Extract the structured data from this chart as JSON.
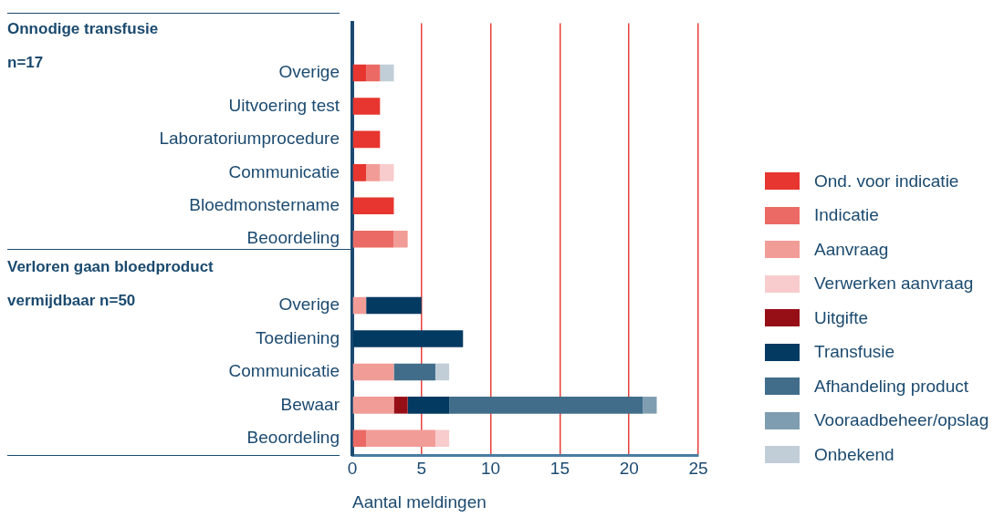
{
  "chart_data": {
    "type": "bar",
    "orientation": "horizontal",
    "stacked": true,
    "categories": [
      null,
      "Overige",
      "Uitvoering test",
      "Laboratoriumprocedure",
      "Communicatie",
      "Bloedmonstername",
      "Beoordeling",
      null,
      "Overige",
      "Toediening",
      "Communicatie",
      "Bewaar",
      "Beoordeling"
    ],
    "series": [
      {
        "name": "Ond. voor indicatie",
        "color": "#e6362f",
        "values": [
          null,
          1,
          2,
          2,
          1,
          3,
          null,
          null,
          null,
          null,
          null,
          null,
          null
        ]
      },
      {
        "name": "Indicatie",
        "color": "#eb6a65",
        "values": [
          null,
          1,
          null,
          null,
          null,
          null,
          3,
          null,
          null,
          null,
          null,
          null,
          1
        ]
      },
      {
        "name": "Aanvraag",
        "color": "#f29c97",
        "values": [
          null,
          null,
          null,
          null,
          1,
          null,
          1,
          null,
          1,
          null,
          3,
          3,
          5
        ]
      },
      {
        "name": "Verwerken aanvraag",
        "color": "#f8cccc",
        "values": [
          null,
          null,
          null,
          null,
          1,
          null,
          null,
          null,
          null,
          null,
          null,
          null,
          1
        ]
      },
      {
        "name": "Uitgifte",
        "color": "#960f17",
        "values": [
          null,
          null,
          null,
          null,
          null,
          null,
          null,
          null,
          null,
          null,
          null,
          1,
          null
        ]
      },
      {
        "name": "Transfusie",
        "color": "#033a62",
        "values": [
          null,
          null,
          null,
          null,
          null,
          null,
          null,
          null,
          4,
          8,
          null,
          3,
          null
        ]
      },
      {
        "name": "Afhandeling product",
        "color": "#416d8b",
        "values": [
          null,
          null,
          null,
          null,
          null,
          null,
          null,
          null,
          null,
          null,
          3,
          14,
          null
        ]
      },
      {
        "name": "Vooraadbeheer/opslag",
        "color": "#7f9db0",
        "values": [
          null,
          null,
          null,
          null,
          null,
          null,
          null,
          null,
          null,
          null,
          null,
          1,
          null
        ]
      },
      {
        "name": "Onbekend",
        "color": "#c1ced8",
        "values": [
          null,
          1,
          null,
          null,
          null,
          null,
          null,
          null,
          null,
          null,
          1,
          null,
          null
        ]
      }
    ],
    "xlim": [
      0,
      25
    ],
    "xticks": [
      0,
      5,
      10,
      15,
      20,
      25
    ],
    "xlabel": "Aantal meldingen",
    "grid": "x",
    "legend": "right",
    "annotations": [
      "Onnodige transfusie",
      "n=17",
      "Verloren gaan bloedproduct",
      "vermijdbaar n=50"
    ]
  }
}
